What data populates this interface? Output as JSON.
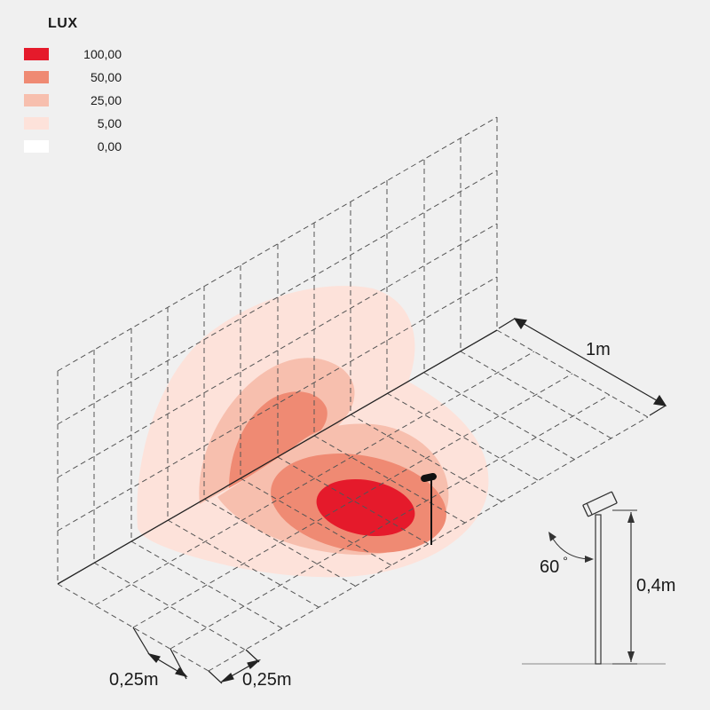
{
  "legend": {
    "title": "LUX",
    "items": [
      {
        "value": "100,00",
        "color": "#e51a2b"
      },
      {
        "value": "50,00",
        "color": "#ef8a73"
      },
      {
        "value": "25,00",
        "color": "#f7bfae"
      },
      {
        "value": "5,00",
        "color": "#fde2da"
      },
      {
        "value": "0,00",
        "color": "#ffffff"
      }
    ]
  },
  "dimensions": {
    "length": "1m",
    "cell_x": "0,25m",
    "cell_y": "0,25m",
    "height": "0,4m",
    "angle": "60",
    "angle_unit": "°"
  }
}
